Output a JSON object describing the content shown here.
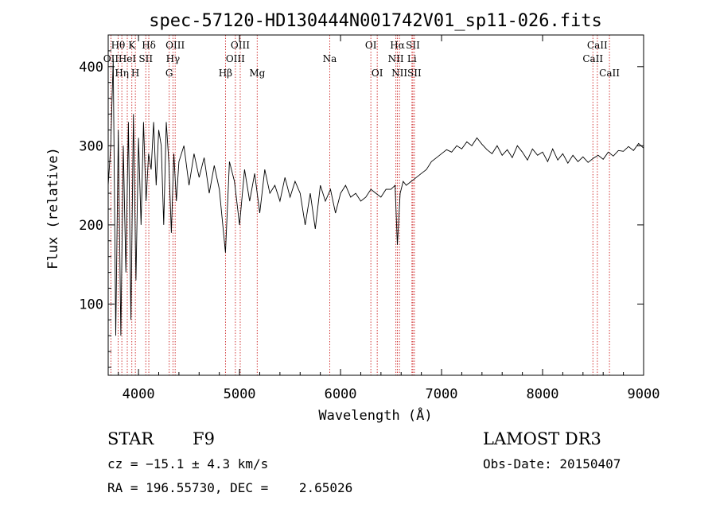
{
  "chart_data": {
    "type": "line",
    "title": "spec-57120-HD130444N001742V01_sp11-026.fits",
    "xlabel": "Wavelength (Å)",
    "ylabel": "Flux (relative)",
    "xlim": [
      3700,
      9000
    ],
    "ylim": [
      10,
      440
    ],
    "x_ticks": [
      4000,
      5000,
      6000,
      7000,
      8000,
      9000
    ],
    "y_ticks": [
      100,
      200,
      300,
      400
    ],
    "grid": false,
    "series": [
      {
        "name": "flux",
        "x": [
          3700,
          3725,
          3750,
          3775,
          3800,
          3825,
          3850,
          3875,
          3900,
          3925,
          3950,
          3975,
          4000,
          4025,
          4050,
          4075,
          4100,
          4125,
          4150,
          4175,
          4200,
          4225,
          4250,
          4275,
          4300,
          4325,
          4350,
          4375,
          4400,
          4450,
          4500,
          4550,
          4600,
          4650,
          4700,
          4750,
          4800,
          4861,
          4900,
          4950,
          5000,
          5050,
          5100,
          5150,
          5200,
          5250,
          5300,
          5350,
          5400,
          5450,
          5500,
          5550,
          5600,
          5650,
          5700,
          5750,
          5800,
          5850,
          5900,
          5950,
          6000,
          6050,
          6100,
          6150,
          6200,
          6250,
          6300,
          6350,
          6400,
          6450,
          6500,
          6540,
          6563,
          6590,
          6620,
          6650,
          6700,
          6750,
          6800,
          6850,
          6900,
          6950,
          7000,
          7050,
          7100,
          7150,
          7200,
          7250,
          7300,
          7350,
          7400,
          7450,
          7500,
          7550,
          7600,
          7650,
          7700,
          7750,
          7800,
          7850,
          7900,
          7950,
          8000,
          8050,
          8100,
          8150,
          8200,
          8250,
          8300,
          8350,
          8400,
          8450,
          8500,
          8550,
          8600,
          8650,
          8700,
          8750,
          8800,
          8850,
          8900,
          8950,
          9000
        ],
        "values": [
          250,
          300,
          410,
          60,
          320,
          60,
          300,
          140,
          330,
          80,
          340,
          130,
          310,
          200,
          330,
          230,
          290,
          270,
          330,
          250,
          320,
          300,
          200,
          330,
          280,
          190,
          290,
          230,
          280,
          300,
          250,
          290,
          260,
          285,
          240,
          275,
          245,
          165,
          280,
          255,
          200,
          270,
          230,
          265,
          215,
          270,
          240,
          250,
          230,
          260,
          235,
          255,
          240,
          200,
          240,
          195,
          250,
          230,
          245,
          215,
          240,
          250,
          235,
          240,
          230,
          235,
          245,
          240,
          235,
          245,
          245,
          250,
          175,
          240,
          255,
          250,
          255,
          260,
          265,
          270,
          280,
          285,
          290,
          295,
          292,
          300,
          296,
          305,
          300,
          310,
          302,
          295,
          290,
          300,
          288,
          295,
          285,
          300,
          292,
          282,
          296,
          288,
          292,
          280,
          296,
          282,
          290,
          278,
          288,
          280,
          286,
          279,
          284,
          288,
          283,
          292,
          287,
          294,
          293,
          299,
          294,
          303,
          297
        ]
      }
    ],
    "line_markers": [
      {
        "label": "Hθ",
        "wavelength": 3798,
        "row": 1
      },
      {
        "label": "OII",
        "wavelength": 3727,
        "row": 2
      },
      {
        "label": "Hη",
        "wavelength": 3835,
        "row": 3
      },
      {
        "label": "HeI",
        "wavelength": 3889,
        "row": 2
      },
      {
        "label": "K",
        "wavelength": 3934,
        "row": 1
      },
      {
        "label": "H",
        "wavelength": 3969,
        "row": 3
      },
      {
        "label": "SII",
        "wavelength": 4072,
        "row": 2
      },
      {
        "label": "Hδ",
        "wavelength": 4102,
        "row": 1
      },
      {
        "label": "G",
        "wavelength": 4304,
        "row": 3
      },
      {
        "label": "Hγ",
        "wavelength": 4341,
        "row": 2
      },
      {
        "label": "OIII",
        "wavelength": 4363,
        "row": 1
      },
      {
        "label": "Hβ",
        "wavelength": 4861,
        "row": 3
      },
      {
        "label": "OIII",
        "wavelength": 4959,
        "row": 2
      },
      {
        "label": "OIII",
        "wavelength": 5007,
        "row": 1
      },
      {
        "label": "Mg",
        "wavelength": 5175,
        "row": 3
      },
      {
        "label": "Na",
        "wavelength": 5893,
        "row": 2
      },
      {
        "label": "OI",
        "wavelength": 6300,
        "row": 1
      },
      {
        "label": "OI",
        "wavelength": 6363,
        "row": 3
      },
      {
        "label": "NII",
        "wavelength": 6548,
        "row": 2
      },
      {
        "label": "Hα",
        "wavelength": 6563,
        "row": 1
      },
      {
        "label": "NII",
        "wavelength": 6583,
        "row": 3
      },
      {
        "label": "Li",
        "wavelength": 6707,
        "row": 2
      },
      {
        "label": "SII",
        "wavelength": 6716,
        "row": 1
      },
      {
        "label": "SII",
        "wavelength": 6731,
        "row": 3
      },
      {
        "label": "CaII",
        "wavelength": 8498,
        "row": 2
      },
      {
        "label": "CaII",
        "wavelength": 8542,
        "row": 1
      },
      {
        "label": "CaII",
        "wavelength": 8662,
        "row": 3
      }
    ]
  },
  "info": {
    "object_class": "STAR",
    "subclass": "F9",
    "survey": "LAMOST DR3",
    "cz": "cz = −15.1 ± 4.3 km/s",
    "obs_date": "Obs-Date: 20150407",
    "coords": "RA = 196.55730, DEC =    2.65026"
  }
}
